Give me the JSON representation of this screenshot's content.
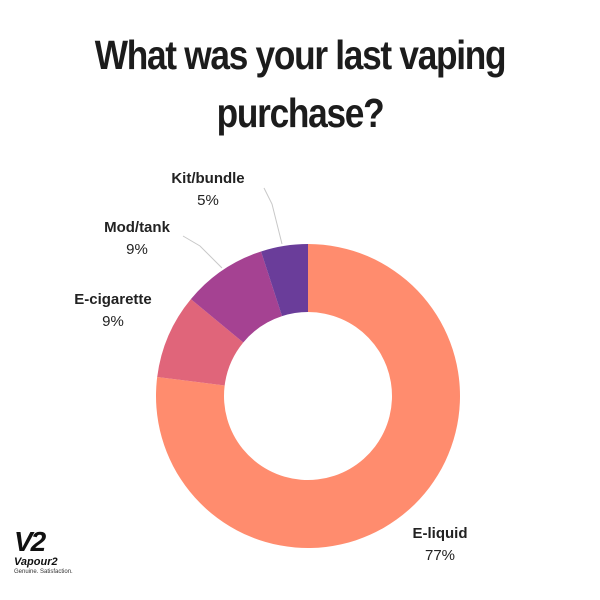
{
  "title": {
    "line1": "What was your last vaping",
    "line2": "purchase?"
  },
  "logo": {
    "mark": "V2",
    "name": "Vapour2",
    "tagline": "Genuine. Satisfaction."
  },
  "chart_data": {
    "type": "pie",
    "donut": true,
    "title": "What was your last vaping purchase?",
    "categories": [
      "E-liquid",
      "E-cigarette",
      "Mod/tank",
      "Kit/bundle"
    ],
    "values": [
      77,
      9,
      9,
      5
    ],
    "value_labels": [
      "77%",
      "9%",
      "9%",
      "5%"
    ],
    "colors": [
      "#ff8c6e",
      "#e0657a",
      "#a54292",
      "#6a3d9a"
    ],
    "legend": "none"
  }
}
